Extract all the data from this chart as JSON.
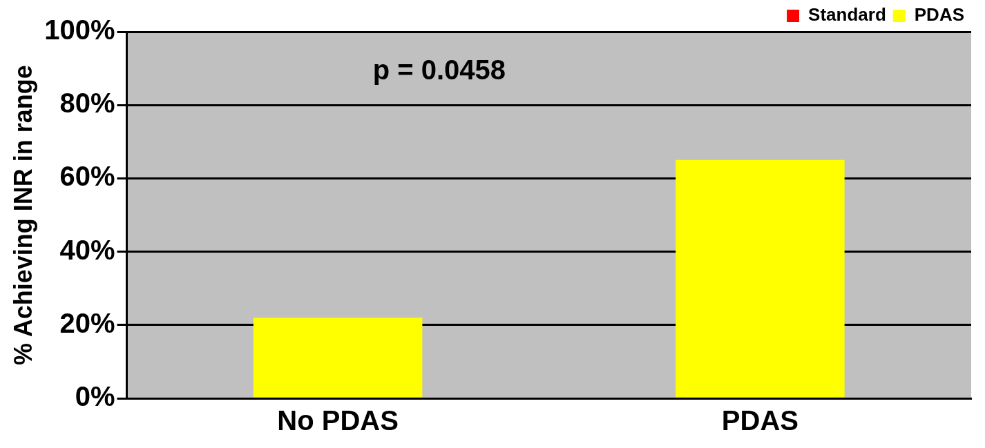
{
  "chart_data": {
    "type": "bar",
    "ylabel": "% Achieving INR in range",
    "categories": [
      "No PDAS",
      "PDAS"
    ],
    "series": [
      {
        "name": "Standard",
        "color": "#ff0000",
        "values": [
          null,
          null
        ]
      },
      {
        "name": "PDAS",
        "color": "#ffff00",
        "values": [
          22,
          65
        ]
      }
    ],
    "ylim": [
      0,
      100
    ],
    "yticks": [
      {
        "value": 0,
        "label": "0%"
      },
      {
        "value": 20,
        "label": "20%"
      },
      {
        "value": 40,
        "label": "40%"
      },
      {
        "value": 60,
        "label": "60%"
      },
      {
        "value": 80,
        "label": "80%"
      },
      {
        "value": 100,
        "label": "100%"
      }
    ],
    "grid": "y",
    "legend": "top right",
    "annotations": [
      "p = 0.0458"
    ]
  }
}
